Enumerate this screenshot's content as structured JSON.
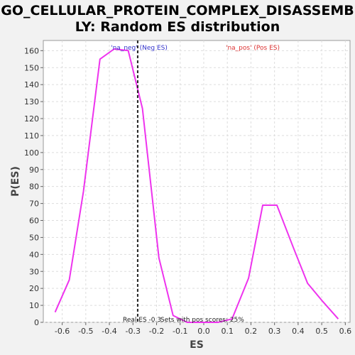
{
  "chart_data": {
    "type": "line",
    "title_line_1": "GO_CELLULAR_PROTEIN_COMPLEX_DISASSEMB",
    "title_line_2": "LY: Random ES distribution",
    "xlabel": "ES",
    "ylabel": "P(ES)",
    "xlim": [
      -0.68,
      0.62
    ],
    "ylim": [
      0,
      166
    ],
    "x_ticks": [
      -0.6,
      -0.5,
      -0.4,
      -0.3,
      -0.2,
      -0.1,
      0.0,
      0.1,
      0.2,
      0.3,
      0.4,
      0.5,
      0.6
    ],
    "x_tick_labels": [
      "-0.6",
      "-0.5",
      "-0.4",
      "-0.3",
      "-0.2",
      "-0.1",
      "0.0",
      "0.1",
      "0.2",
      "0.3",
      "0.4",
      "0.5",
      "0.6"
    ],
    "y_ticks": [
      0,
      10,
      20,
      30,
      40,
      50,
      60,
      70,
      80,
      90,
      100,
      110,
      120,
      130,
      140,
      150,
      160
    ],
    "grid": true,
    "series": [
      {
        "color": "#ee33ee",
        "points": [
          [
            -0.63,
            6
          ],
          [
            -0.57,
            25
          ],
          [
            -0.51,
            77
          ],
          [
            -0.44,
            155
          ],
          [
            -0.38,
            161
          ],
          [
            -0.32,
            160
          ],
          [
            -0.26,
            126
          ],
          [
            -0.19,
            38
          ],
          [
            -0.13,
            4
          ],
          [
            -0.07,
            0
          ],
          [
            0.0,
            0
          ],
          [
            0.06,
            0
          ],
          [
            0.12,
            2
          ],
          [
            0.19,
            26
          ],
          [
            0.25,
            69
          ],
          [
            0.31,
            69
          ],
          [
            0.38,
            44
          ],
          [
            0.44,
            23
          ],
          [
            0.5,
            13
          ],
          [
            0.57,
            2
          ]
        ]
      }
    ],
    "real_es": -0.28,
    "legend": [
      {
        "label": "'na_neg' (Neg ES)",
        "color": "#3333cc"
      },
      {
        "label": "'na_pos' (Pos ES)",
        "color": "#dd3333"
      }
    ],
    "annotations": {
      "real_es_text": "Real ES -0.3",
      "pos_scores_text": "Sets with pos scores: 25%"
    }
  }
}
